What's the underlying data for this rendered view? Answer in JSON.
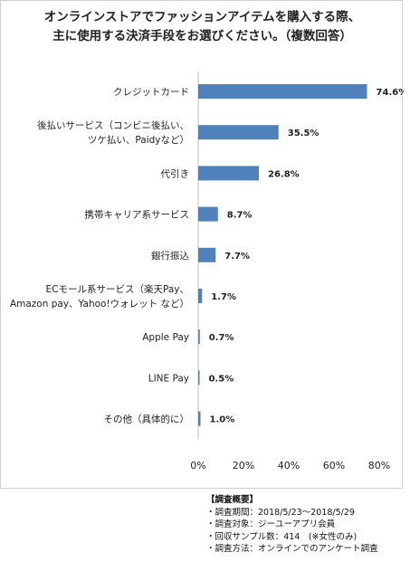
{
  "chart_data": {
    "type": "bar",
    "orientation": "horizontal",
    "title_lines": [
      "オンラインストアでファッションアイテムを購入する際、",
      "主に使用する決済手段をお選びください。（複数回答）"
    ],
    "categories": [
      [
        "クレジットカード"
      ],
      [
        "後払いサービス（コンビニ後払い、",
        "ツケ払い、Paidyなど）"
      ],
      [
        "代引き"
      ],
      [
        "携帯キャリア系サービス"
      ],
      [
        "銀行振込"
      ],
      [
        "ECモール系サービス（楽天Pay、",
        "Amazon pay、Yahoo!ウォレット など）"
      ],
      [
        "Apple Pay"
      ],
      [
        "LINE Pay"
      ],
      [
        "その他（具体的に）"
      ]
    ],
    "values": [
      74.6,
      35.5,
      26.8,
      8.7,
      7.7,
      1.7,
      0.7,
      0.5,
      1.0
    ],
    "value_labels": [
      "74.6%",
      "35.5%",
      "26.8%",
      "8.7%",
      "7.7%",
      "1.7%",
      "0.7%",
      "0.5%",
      "1.0%"
    ],
    "xlim": [
      0,
      80
    ],
    "x_ticks": [
      0,
      20,
      40,
      60,
      80
    ],
    "x_tick_labels": [
      "0%",
      "20%",
      "40%",
      "60%",
      "80%"
    ],
    "bar_color": "#4f81bd",
    "grid": false,
    "legend": "none"
  },
  "notes": {
    "heading": "【調査概要】",
    "lines": [
      "・調査期間：2018/5/23～2018/5/29",
      "・調査対象：ジーユーアプリ会員",
      "・回収サンプル数：414　(※女性のみ)",
      "・調査方法：オンラインでのアンケート調査"
    ]
  }
}
